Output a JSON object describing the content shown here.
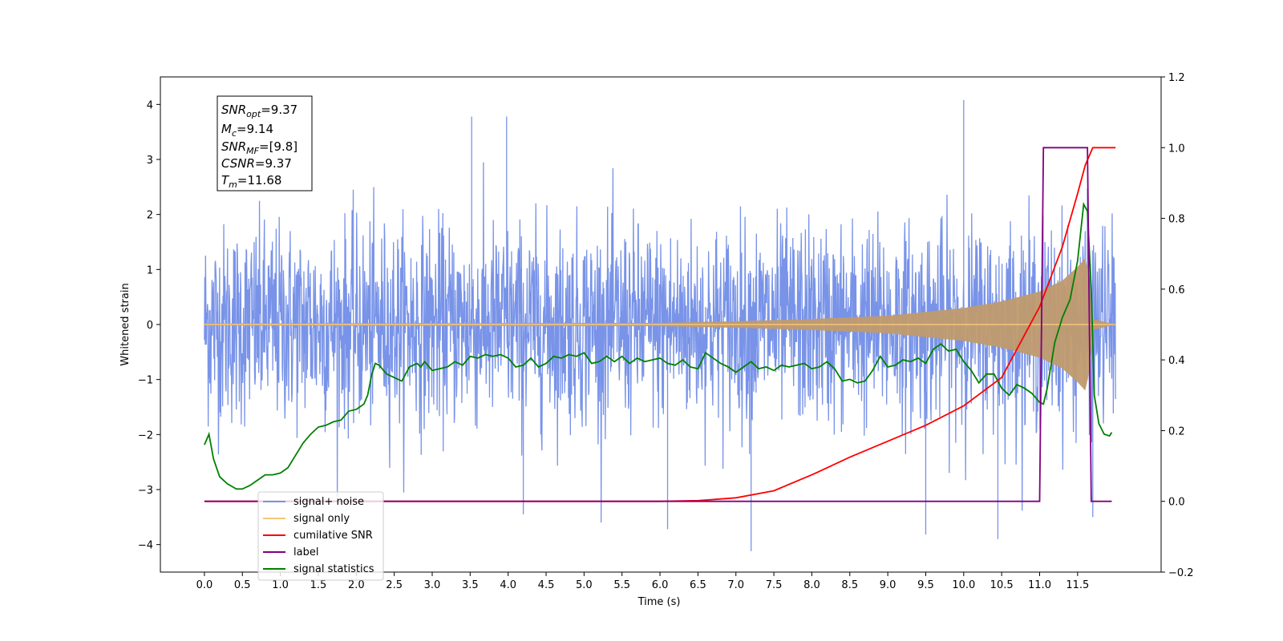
{
  "chart_data": {
    "type": "line",
    "title": "",
    "xlabel": "Time (s)",
    "ylabel": "Whitened strain",
    "ylabel_right": "",
    "xlim": [
      -0.58,
      12.6
    ],
    "ylim": [
      -4.5,
      4.5
    ],
    "ylim_right": [
      -0.2,
      1.2
    ],
    "x_ticks": [
      "0.0",
      "0.5",
      "1.0",
      "1.5",
      "2.0",
      "2.5",
      "3.0",
      "3.5",
      "4.0",
      "4.5",
      "5.0",
      "5.5",
      "6.0",
      "6.5",
      "7.0",
      "7.5",
      "8.0",
      "8.5",
      "9.0",
      "9.5",
      "10.0",
      "10.5",
      "11.0",
      "11.5"
    ],
    "y_ticks_left": [
      "4",
      "3",
      "2",
      "1",
      "0",
      "−1",
      "−2",
      "−3",
      "−4"
    ],
    "y_ticks_right": [
      "1.2",
      "1.0",
      "0.8",
      "0.6",
      "0.4",
      "0.2",
      "0.0",
      "−0.2"
    ],
    "grid": false,
    "legend_position": "lower-left",
    "annotation": {
      "snr_opt": {
        "sym": "SNR",
        "sub": "opt",
        "text": "=9.37"
      },
      "mc": {
        "sym": "M",
        "sub": "c",
        "text": "=9.14"
      },
      "snr_mf": {
        "sym": "SNR",
        "sub": "MF",
        "text": "=[9.8]"
      },
      "csnr": {
        "sym": "CSNR",
        "sub": "",
        "text": "=9.37"
      },
      "tm": {
        "sym": "T",
        "sub": "m",
        "text": "=11.68"
      }
    },
    "series": [
      {
        "name": "signal+ noise",
        "color": "#7893e8",
        "axis": "left",
        "x_range": [
          0.0,
          12.0
        ],
        "std": 0.9,
        "extremes": [
          {
            "x": 3.52,
            "y": 3.78
          },
          {
            "x": 3.98,
            "y": 3.78
          },
          {
            "x": 10.0,
            "y": 4.08
          },
          {
            "x": 7.2,
            "y": -4.12
          },
          {
            "x": 6.1,
            "y": -3.72
          },
          {
            "x": 9.5,
            "y": -3.82
          },
          {
            "x": 10.45,
            "y": -3.9
          },
          {
            "x": 11.7,
            "y": -3.5
          },
          {
            "x": 4.2,
            "y": -3.45
          }
        ]
      },
      {
        "name": "signal only",
        "color": "#f5c678",
        "axis": "left",
        "x_range": [
          0.0,
          12.0
        ],
        "envelope": [
          [
            0.0,
            0.02
          ],
          [
            6.0,
            0.03
          ],
          [
            7.0,
            0.06
          ],
          [
            8.0,
            0.1
          ],
          [
            9.0,
            0.16
          ],
          [
            10.0,
            0.3
          ],
          [
            10.5,
            0.42
          ],
          [
            11.0,
            0.6
          ],
          [
            11.3,
            0.8
          ],
          [
            11.5,
            1.05
          ],
          [
            11.6,
            1.2
          ],
          [
            11.65,
            0.9
          ],
          [
            11.7,
            0.1
          ],
          [
            12.0,
            0.0
          ]
        ]
      },
      {
        "name": "cumilative SNR",
        "color": "#ff0000",
        "axis": "right",
        "x": [
          0.0,
          6.0,
          6.5,
          7.0,
          7.5,
          8.0,
          8.5,
          9.0,
          9.5,
          10.0,
          10.5,
          11.0,
          11.3,
          11.5,
          11.6,
          11.7,
          12.0
        ],
        "values": [
          0.0,
          0.0,
          0.002,
          0.01,
          0.03,
          0.075,
          0.125,
          0.17,
          0.215,
          0.27,
          0.35,
          0.55,
          0.72,
          0.87,
          0.95,
          1.0,
          1.0
        ]
      },
      {
        "name": "label",
        "color": "#800080",
        "axis": "right",
        "x": [
          0.0,
          11.0,
          11.05,
          11.63,
          11.68,
          11.95
        ],
        "values": [
          0.0,
          0.0,
          1.0,
          1.0,
          0.0,
          0.0
        ]
      },
      {
        "name": "signal statistics",
        "color": "#008000",
        "axis": "right",
        "x": [
          0.0,
          0.06,
          0.12,
          0.2,
          0.3,
          0.42,
          0.5,
          0.6,
          0.7,
          0.8,
          0.9,
          1.0,
          1.1,
          1.2,
          1.3,
          1.4,
          1.5,
          1.6,
          1.7,
          1.8,
          1.9,
          2.0,
          2.1,
          2.15,
          2.2,
          2.25,
          2.3,
          2.4,
          2.5,
          2.6,
          2.7,
          2.8,
          2.85,
          2.9,
          3.0,
          3.1,
          3.2,
          3.3,
          3.4,
          3.5,
          3.6,
          3.7,
          3.8,
          3.9,
          4.0,
          4.1,
          4.2,
          4.3,
          4.4,
          4.5,
          4.6,
          4.7,
          4.8,
          4.9,
          5.0,
          5.1,
          5.2,
          5.3,
          5.4,
          5.5,
          5.6,
          5.7,
          5.8,
          5.9,
          6.0,
          6.1,
          6.2,
          6.3,
          6.4,
          6.5,
          6.6,
          6.7,
          6.8,
          6.9,
          7.0,
          7.1,
          7.2,
          7.3,
          7.4,
          7.5,
          7.6,
          7.7,
          7.8,
          7.9,
          8.0,
          8.1,
          8.2,
          8.3,
          8.4,
          8.5,
          8.6,
          8.7,
          8.8,
          8.9,
          9.0,
          9.1,
          9.2,
          9.3,
          9.4,
          9.5,
          9.6,
          9.7,
          9.8,
          9.9,
          10.0,
          10.1,
          10.2,
          10.3,
          10.4,
          10.5,
          10.6,
          10.7,
          10.8,
          10.9,
          11.0,
          11.05,
          11.1,
          11.2,
          11.3,
          11.4,
          11.5,
          11.58,
          11.63,
          11.68,
          11.72,
          11.78,
          11.85,
          11.92,
          11.95
        ],
        "values": [
          0.16,
          0.19,
          0.12,
          0.07,
          0.05,
          0.035,
          0.035,
          0.045,
          0.06,
          0.075,
          0.075,
          0.08,
          0.095,
          0.13,
          0.165,
          0.19,
          0.21,
          0.215,
          0.225,
          0.23,
          0.255,
          0.26,
          0.275,
          0.3,
          0.355,
          0.39,
          0.385,
          0.36,
          0.35,
          0.34,
          0.38,
          0.39,
          0.38,
          0.395,
          0.37,
          0.375,
          0.38,
          0.395,
          0.385,
          0.41,
          0.405,
          0.415,
          0.41,
          0.415,
          0.405,
          0.38,
          0.385,
          0.405,
          0.38,
          0.39,
          0.41,
          0.405,
          0.415,
          0.41,
          0.42,
          0.39,
          0.395,
          0.41,
          0.395,
          0.41,
          0.39,
          0.405,
          0.395,
          0.4,
          0.405,
          0.39,
          0.385,
          0.4,
          0.38,
          0.375,
          0.42,
          0.405,
          0.39,
          0.38,
          0.365,
          0.38,
          0.395,
          0.375,
          0.38,
          0.37,
          0.385,
          0.38,
          0.385,
          0.39,
          0.375,
          0.38,
          0.395,
          0.375,
          0.34,
          0.345,
          0.335,
          0.34,
          0.37,
          0.41,
          0.38,
          0.385,
          0.4,
          0.395,
          0.405,
          0.39,
          0.43,
          0.445,
          0.425,
          0.43,
          0.395,
          0.37,
          0.335,
          0.36,
          0.36,
          0.32,
          0.3,
          0.33,
          0.32,
          0.305,
          0.28,
          0.275,
          0.32,
          0.45,
          0.52,
          0.57,
          0.68,
          0.84,
          0.82,
          0.6,
          0.3,
          0.22,
          0.19,
          0.185,
          0.195
        ]
      }
    ]
  }
}
